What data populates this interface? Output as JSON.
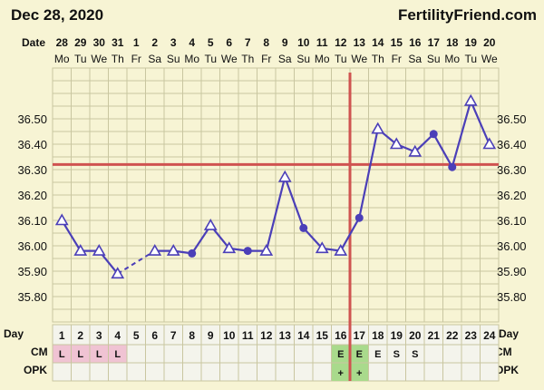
{
  "header": {
    "title": "Dec 28, 2020",
    "brand": "FertilityFriend.com"
  },
  "labels": {
    "date_row": "Date",
    "day_row": "Day",
    "cm_row": "CM",
    "opk_row": "OPK"
  },
  "colors": {
    "background": "#f7f4d4",
    "grid": "#c9c6a0",
    "line": "#4b3fb8",
    "coverline": "#cf5350",
    "cm_l_cell": "#f0c3d3",
    "cm_e_cell": "#a9da8c",
    "panel_bg": "#f4f4ec"
  },
  "chart_data": {
    "type": "line",
    "title": "",
    "xlabel": "Day",
    "ylabel": "",
    "ylim": [
      35.7,
      36.7
    ],
    "y_ticks": [
      "35.80",
      "35.90",
      "36.00",
      "36.10",
      "36.20",
      "36.30",
      "36.40",
      "36.50"
    ],
    "dates": [
      "28",
      "29",
      "30",
      "31",
      "1",
      "2",
      "3",
      "4",
      "5",
      "6",
      "7",
      "8",
      "9",
      "10",
      "11",
      "12",
      "13",
      "14",
      "15",
      "16",
      "17",
      "18",
      "19",
      "20"
    ],
    "weekdays": [
      "Mo",
      "Tu",
      "We",
      "Th",
      "Fr",
      "Sa",
      "Su",
      "Mo",
      "Tu",
      "We",
      "Th",
      "Fr",
      "Sa",
      "Su",
      "Mo",
      "Tu",
      "We",
      "Th",
      "Fr",
      "Sa",
      "Su",
      "Mo",
      "Tu",
      "We"
    ],
    "days": [
      "1",
      "2",
      "3",
      "4",
      "5",
      "6",
      "7",
      "8",
      "9",
      "10",
      "11",
      "12",
      "13",
      "14",
      "15",
      "16",
      "17",
      "18",
      "19",
      "20",
      "21",
      "22",
      "23",
      "24"
    ],
    "temperatures": [
      36.1,
      35.98,
      35.98,
      35.89,
      null,
      35.98,
      35.98,
      35.97,
      36.08,
      35.99,
      35.98,
      35.98,
      36.27,
      36.07,
      35.99,
      35.98,
      36.11,
      36.46,
      36.4,
      36.37,
      36.44,
      36.31,
      36.57,
      36.4
    ],
    "markers": [
      "triangle",
      "triangle",
      "triangle",
      "triangle",
      null,
      "triangle",
      "triangle",
      "dot",
      "triangle",
      "triangle",
      "dot",
      "triangle",
      "triangle",
      "dot",
      "triangle",
      "triangle",
      "dot",
      "triangle",
      "triangle",
      "triangle",
      "dot",
      "dot",
      "triangle",
      "triangle"
    ],
    "interpolated_gap": {
      "from_day": 4,
      "to_day": 6
    },
    "coverline": 36.32,
    "ovulation_day": 17,
    "cm": [
      "L",
      "L",
      "L",
      "L",
      "",
      "",
      "",
      "",
      "",
      "",
      "",
      "",
      "",
      "",
      "",
      "E",
      "E",
      "E",
      "S",
      "S",
      "",
      "",
      "",
      ""
    ],
    "cm_highlight": [
      "pink",
      "pink",
      "pink",
      "pink",
      "",
      "",
      "",
      "",
      "",
      "",
      "",
      "",
      "",
      "",
      "",
      "green",
      "green",
      "",
      "",
      "",
      "",
      "",
      "",
      ""
    ],
    "opk": [
      "",
      "",
      "",
      "",
      "",
      "",
      "",
      "",
      "",
      "",
      "",
      "",
      "",
      "",
      "",
      "+",
      "+",
      "",
      "",
      "",
      "",
      "",
      "",
      ""
    ],
    "opk_highlight": [
      "",
      "",
      "",
      "",
      "",
      "",
      "",
      "",
      "",
      "",
      "",
      "",
      "",
      "",
      "",
      "green",
      "green",
      "",
      "",
      "",
      "",
      "",
      "",
      ""
    ]
  }
}
